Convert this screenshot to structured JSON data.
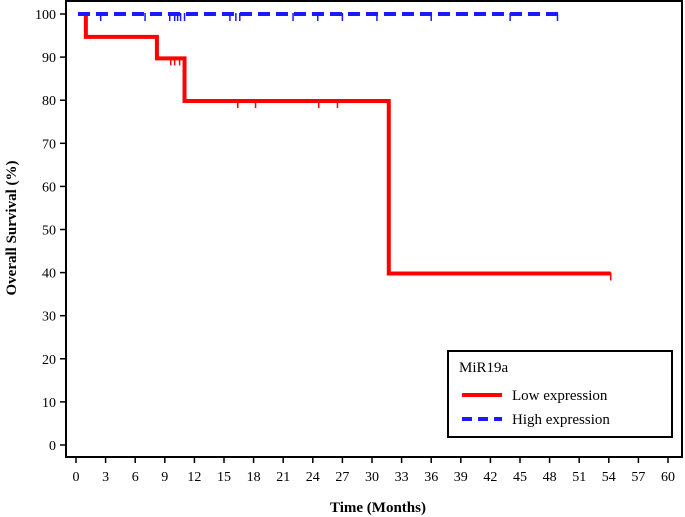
{
  "chart_data": {
    "type": "line",
    "step": true,
    "xlabel": "Time (Months)",
    "ylabel": "Overall Survival (%)",
    "xlim": [
      0,
      60
    ],
    "ylim": [
      0,
      100
    ],
    "xticks": [
      "0",
      "3",
      "6",
      "9",
      "12",
      "15",
      "18",
      "21",
      "24",
      "27",
      "30",
      "33",
      "36",
      "39",
      "42",
      "45",
      "48",
      "51",
      "54",
      "57",
      "60"
    ],
    "yticks": [
      "0",
      "10",
      "20",
      "30",
      "40",
      "50",
      "60",
      "70",
      "80",
      "90",
      "100"
    ],
    "grid": false,
    "legend_position": "bottom-right",
    "legend_title": "MiR19a",
    "series": [
      {
        "name": "Low expression",
        "color": "#ff0000",
        "line_style": "solid",
        "points": [
          [
            0.2,
            100
          ],
          [
            1,
            100
          ],
          [
            1,
            94.7
          ],
          [
            8.2,
            94.7
          ],
          [
            8.2,
            89.7
          ],
          [
            11,
            89.7
          ],
          [
            11,
            79.8
          ],
          [
            31.7,
            79.8
          ],
          [
            31.7,
            39.8
          ],
          [
            54.2,
            39.8
          ]
        ],
        "censored": [
          [
            9.6,
            89.7
          ],
          [
            10,
            89.7
          ],
          [
            10.5,
            89.7
          ],
          [
            16.4,
            79.8
          ],
          [
            18.2,
            79.8
          ],
          [
            24.6,
            79.8
          ],
          [
            26.5,
            79.8
          ],
          [
            54.2,
            39.8
          ]
        ]
      },
      {
        "name": "High expression",
        "color": "#1a1aff",
        "line_style": "dashed",
        "points": [
          [
            0.2,
            100
          ],
          [
            49,
            100
          ]
        ],
        "censored": [
          [
            2.5,
            100
          ],
          [
            7,
            100
          ],
          [
            9.5,
            100
          ],
          [
            10,
            100
          ],
          [
            10.3,
            100
          ],
          [
            10.6,
            100
          ],
          [
            11,
            100
          ],
          [
            15.6,
            100
          ],
          [
            16.2,
            100
          ],
          [
            16.6,
            100
          ],
          [
            22,
            100
          ],
          [
            24.5,
            100
          ],
          [
            27,
            100
          ],
          [
            30.5,
            100
          ],
          [
            36,
            100
          ],
          [
            44,
            100
          ],
          [
            48.8,
            100
          ]
        ]
      }
    ]
  }
}
